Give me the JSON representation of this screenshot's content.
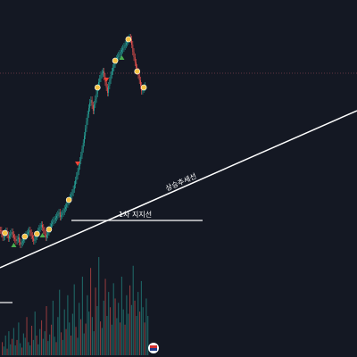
{
  "colors": {
    "background": "#141823",
    "up": "#26a69a",
    "down": "#ef5350",
    "trendline": "#ffffff",
    "resistance": "#b05060",
    "marker_buy": "#4caf50",
    "marker_sell": "#f44336",
    "marker_label": "#f5c242"
  },
  "chart_data": {
    "type": "candlestick",
    "grid": false,
    "legend": "none",
    "annotations": {
      "trendline_label": "상승추세선",
      "support_label": "1차 지지선"
    },
    "price": {
      "candles_close": [
        258,
        262,
        266,
        265,
        261,
        259,
        263,
        267,
        264,
        262,
        260,
        263,
        266,
        268,
        270,
        268,
        266,
        271,
        274,
        272,
        270,
        268,
        265,
        263,
        262,
        260,
        258,
        261,
        264,
        267,
        270,
        268,
        265,
        262,
        259,
        256,
        254,
        252,
        255,
        258,
        262,
        266,
        263,
        260,
        257,
        254,
        251,
        249,
        247,
        246,
        244,
        242,
        240,
        238,
        243,
        241,
        239,
        237,
        234,
        232,
        229,
        226,
        224,
        221,
        219,
        216,
        212,
        207,
        202,
        197,
        192,
        186,
        180,
        174,
        167,
        160,
        152,
        144,
        136,
        128,
        121,
        115,
        112,
        118,
        124,
        117,
        111,
        105,
        98,
        92,
        88,
        84,
        82,
        80,
        86,
        92,
        98,
        104,
        96,
        90,
        84,
        80,
        76,
        72,
        68,
        66,
        64,
        62,
        60,
        58,
        56,
        54,
        52,
        50,
        48,
        46,
        44,
        42,
        44,
        50,
        58,
        64,
        70,
        76,
        80,
        84,
        90,
        96,
        102,
        100,
        98,
        96
      ]
    },
    "volume": {
      "values": [
        12,
        8,
        18,
        6,
        22,
        10,
        15,
        25,
        9,
        14,
        30,
        11,
        7,
        20,
        16,
        35,
        12,
        9,
        27,
        14,
        40,
        18,
        10,
        24,
        32,
        15,
        22,
        45,
        13,
        19,
        28,
        50,
        17,
        12,
        35,
        60,
        21,
        14,
        42,
        24,
        55,
        30,
        18,
        38,
        65,
        26,
        16,
        48,
        33,
        72,
        20,
        29,
        55,
        40,
        80,
        35,
        22,
        62,
        45,
        90,
        31,
        25,
        50,
        70,
        36,
        58,
        44,
        28,
        66,
        52,
        34,
        48,
        30,
        72,
        42,
        28,
        55,
        38,
        64,
        46,
        82,
        50,
        36,
        58,
        40,
        68,
        44,
        30,
        52,
        36
      ]
    },
    "trendline": {
      "from": [
        0,
        300
      ],
      "to": [
        400,
        124
      ]
    },
    "support_line": {
      "from": [
        80,
        247
      ],
      "to": [
        227,
        247
      ]
    },
    "resistance_line": {
      "y": 82
    }
  }
}
